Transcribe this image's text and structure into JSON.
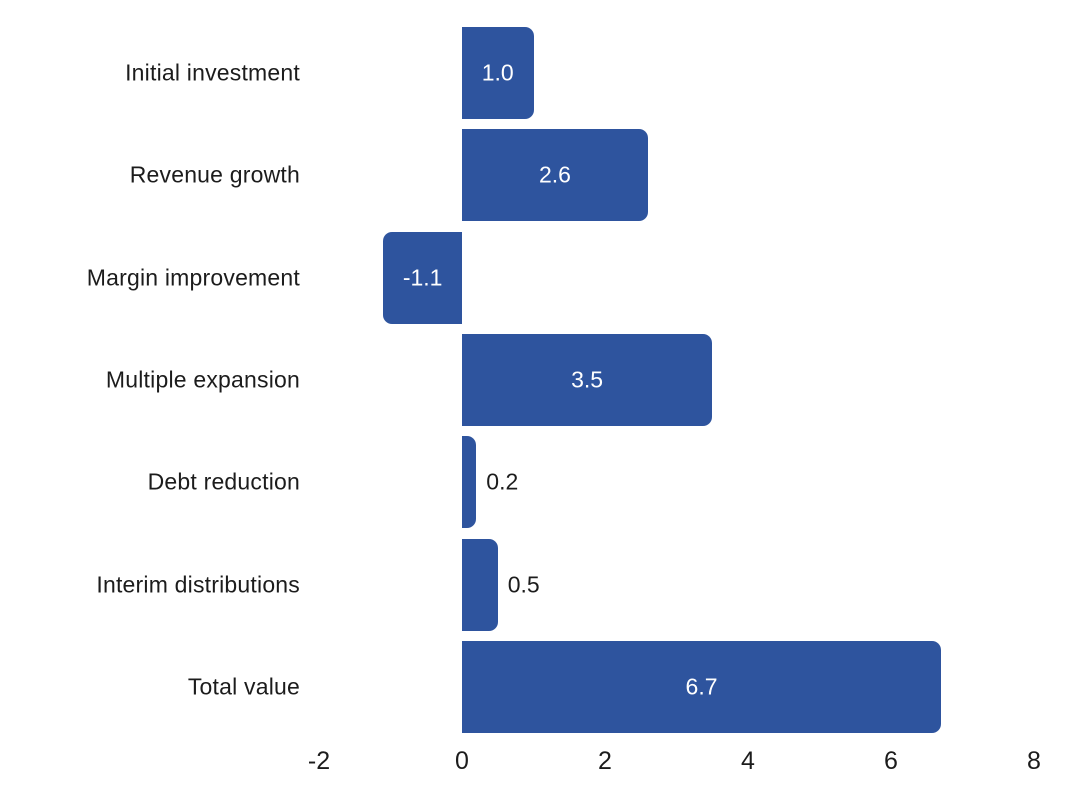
{
  "chart_data": {
    "type": "bar",
    "orientation": "horizontal",
    "title": "",
    "xlabel": "",
    "ylabel": "",
    "xlim": [
      -2,
      8
    ],
    "x_ticks": [
      "-2",
      "0",
      "2",
      "4",
      "6",
      "8"
    ],
    "x_tick_values": [
      -2,
      0,
      2,
      4,
      6,
      8
    ],
    "grid": false,
    "legend": false,
    "categories": [
      "Initial investment",
      "Revenue growth",
      "Margin improvement",
      "Multiple expansion",
      "Debt reduction",
      "Interim distributions",
      "Total value"
    ],
    "values": [
      1.0,
      2.6,
      -1.1,
      3.5,
      0.2,
      0.5,
      6.7
    ],
    "value_labels": [
      "1.0",
      "2.6",
      "-1.1",
      "3.5",
      "0.2",
      "0.5",
      "6.7"
    ],
    "value_label_positions": [
      "inside",
      "inside",
      "inside",
      "inside",
      "outside",
      "outside",
      "inside"
    ],
    "colors": {
      "bar": "#2e549e",
      "value_label_inside": "#ffffff",
      "value_label_outside": "#1c1c1c",
      "axis_text": "#1c1c1c",
      "background": "#ffffff"
    }
  }
}
